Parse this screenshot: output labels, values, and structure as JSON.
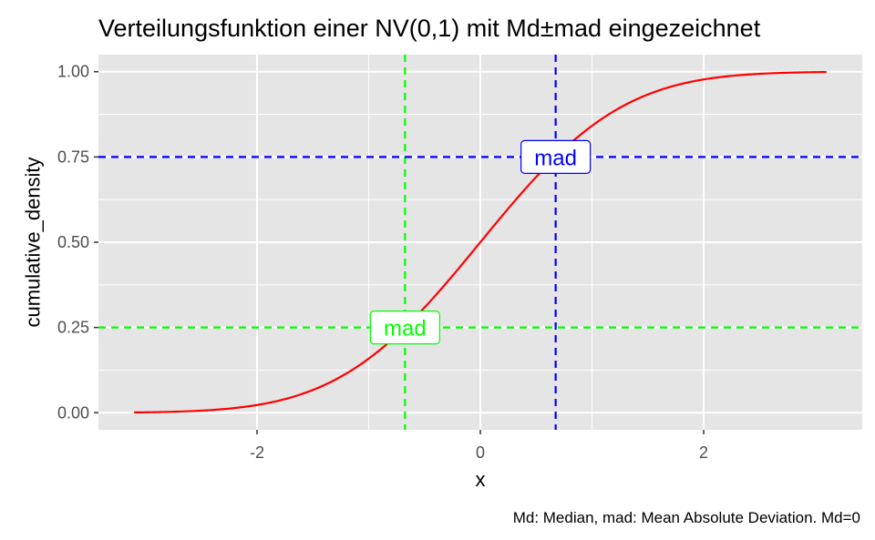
{
  "chart_data": {
    "type": "line",
    "title": "Verteilungsfunktion einer NV(0,1) mit Md±mad eingezeichnet",
    "xlabel": "x",
    "ylabel": "cumulative_density",
    "caption": "Md: Median, mad: Mean Absolute Deviation. Md=0",
    "xlim": [
      -3.42,
      3.42
    ],
    "ylim": [
      -0.05,
      1.05
    ],
    "x_ticks": [
      -2,
      0,
      2
    ],
    "x_tick_labels": [
      "-2",
      "0",
      "2"
    ],
    "y_ticks": [
      0,
      0.25,
      0.5,
      0.75,
      1
    ],
    "y_tick_labels": [
      "0.00",
      "0.25",
      "0.50",
      "0.75",
      "1.00"
    ],
    "grid": true,
    "legend": "none",
    "series": [
      {
        "function": "standard normal CDF",
        "x_range": [
          -3.1,
          3.1
        ],
        "color": "#ff0000"
      }
    ],
    "reference_lines": [
      {
        "orientation": "vertical",
        "value": -0.6745,
        "color": "#00ff00",
        "style": "dashed"
      },
      {
        "orientation": "horizontal",
        "value": 0.25,
        "color": "#00ff00",
        "style": "dashed"
      },
      {
        "orientation": "vertical",
        "value": 0.6745,
        "color": "#0000ff",
        "style": "dashed"
      },
      {
        "orientation": "horizontal",
        "value": 0.75,
        "color": "#0000ff",
        "style": "dashed"
      }
    ],
    "annotations": [
      {
        "text": "mad",
        "x": -0.6745,
        "y": 0.25,
        "color": "#00ff00"
      },
      {
        "text": "mad",
        "x": 0.6745,
        "y": 0.75,
        "color": "#0000ff"
      }
    ],
    "colors": {
      "panel_background": "#e5e5e5",
      "gridline": "#ffffff",
      "curve": "#ff0000"
    }
  }
}
